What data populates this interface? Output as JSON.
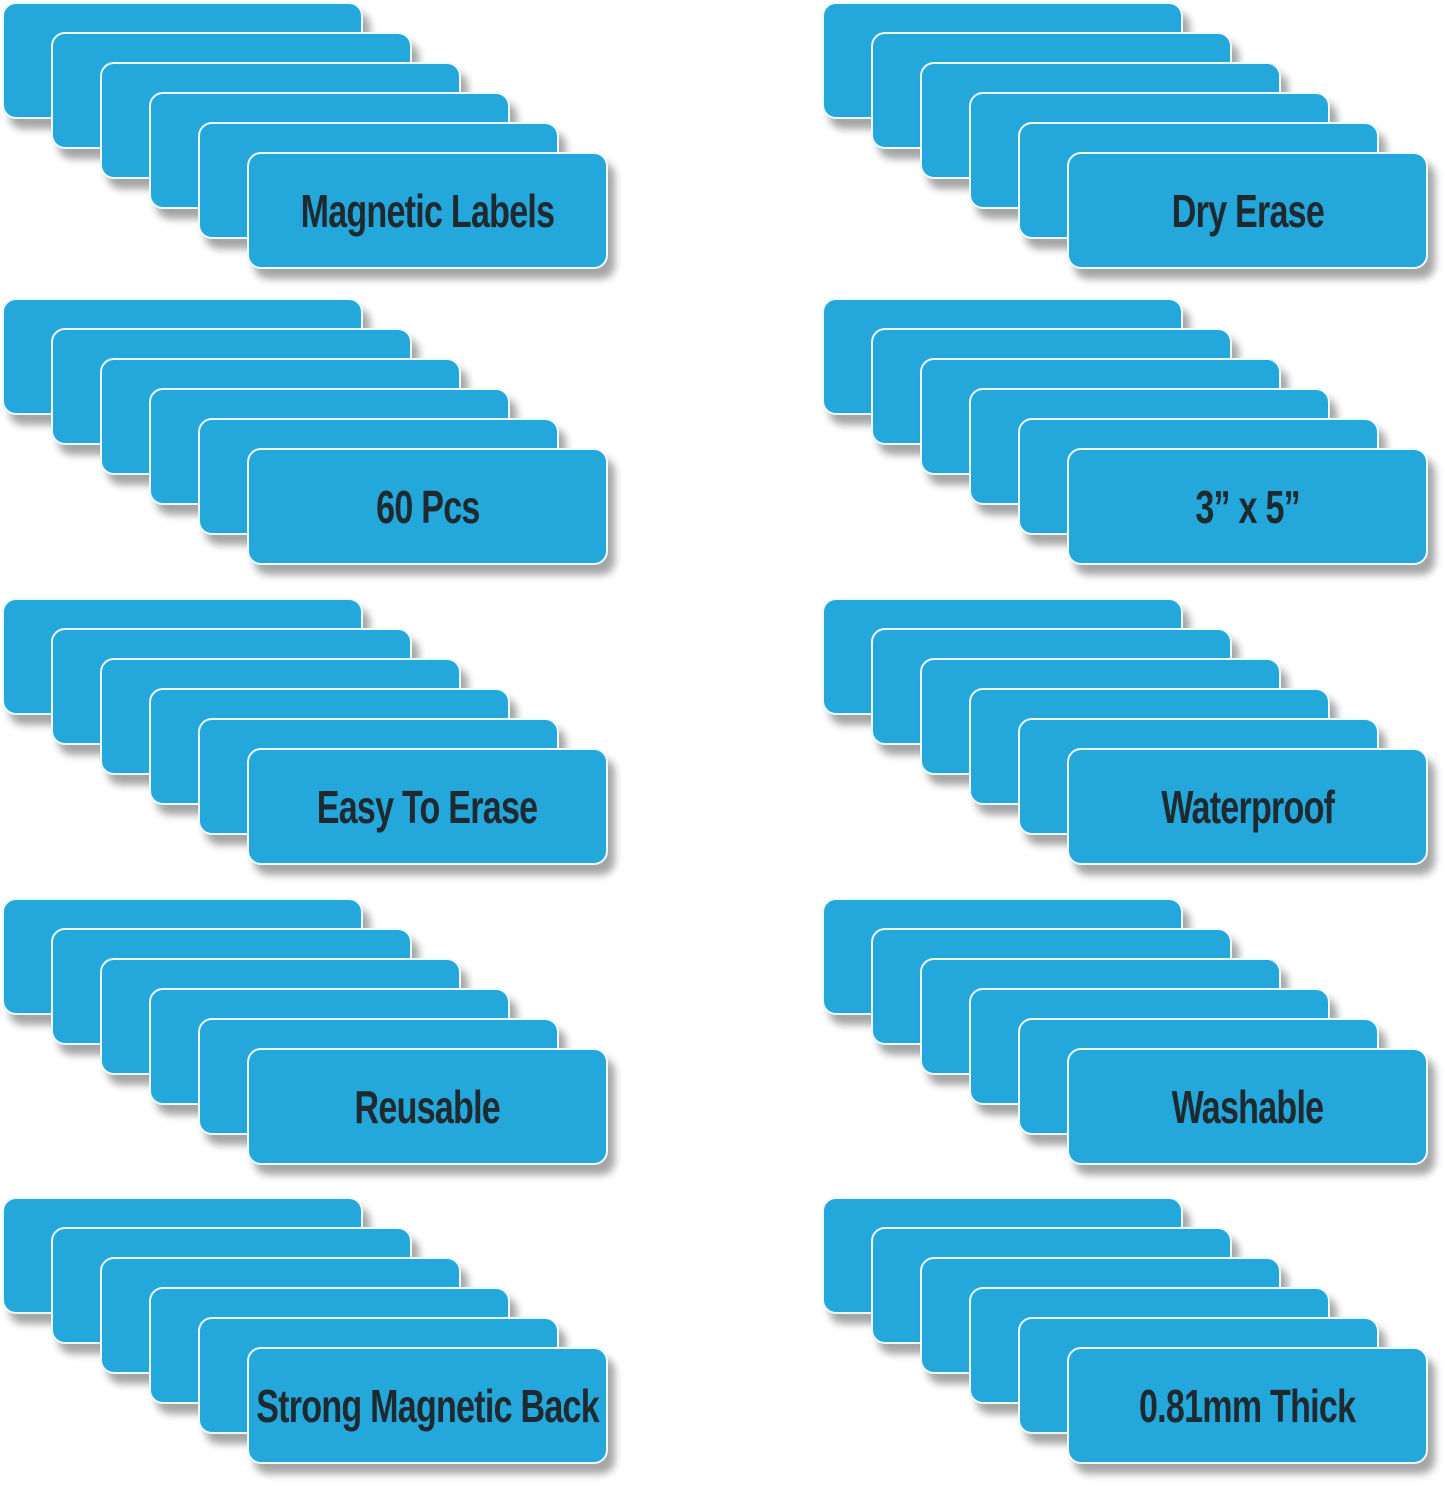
{
  "graphic": {
    "description_visible_content_only": true,
    "cards_per_stack": 6,
    "rows": 5,
    "columns_count": 2
  },
  "colors": {
    "background": "#ffffff",
    "card_fill": "#24a7da",
    "card_border": "#edf9fe",
    "label_text": "#1f2a30",
    "card_shadow": "rgba(30,30,30,0.40)"
  },
  "columns": {
    "left": [
      "Magnetic Labels",
      "60 Pcs",
      "Easy To Erase",
      "Reusable",
      "Strong Magnetic Back"
    ],
    "right": [
      "Dry Erase",
      "3” x 5”",
      "Waterproof",
      "Washable",
      "0.81mm Thick"
    ]
  }
}
